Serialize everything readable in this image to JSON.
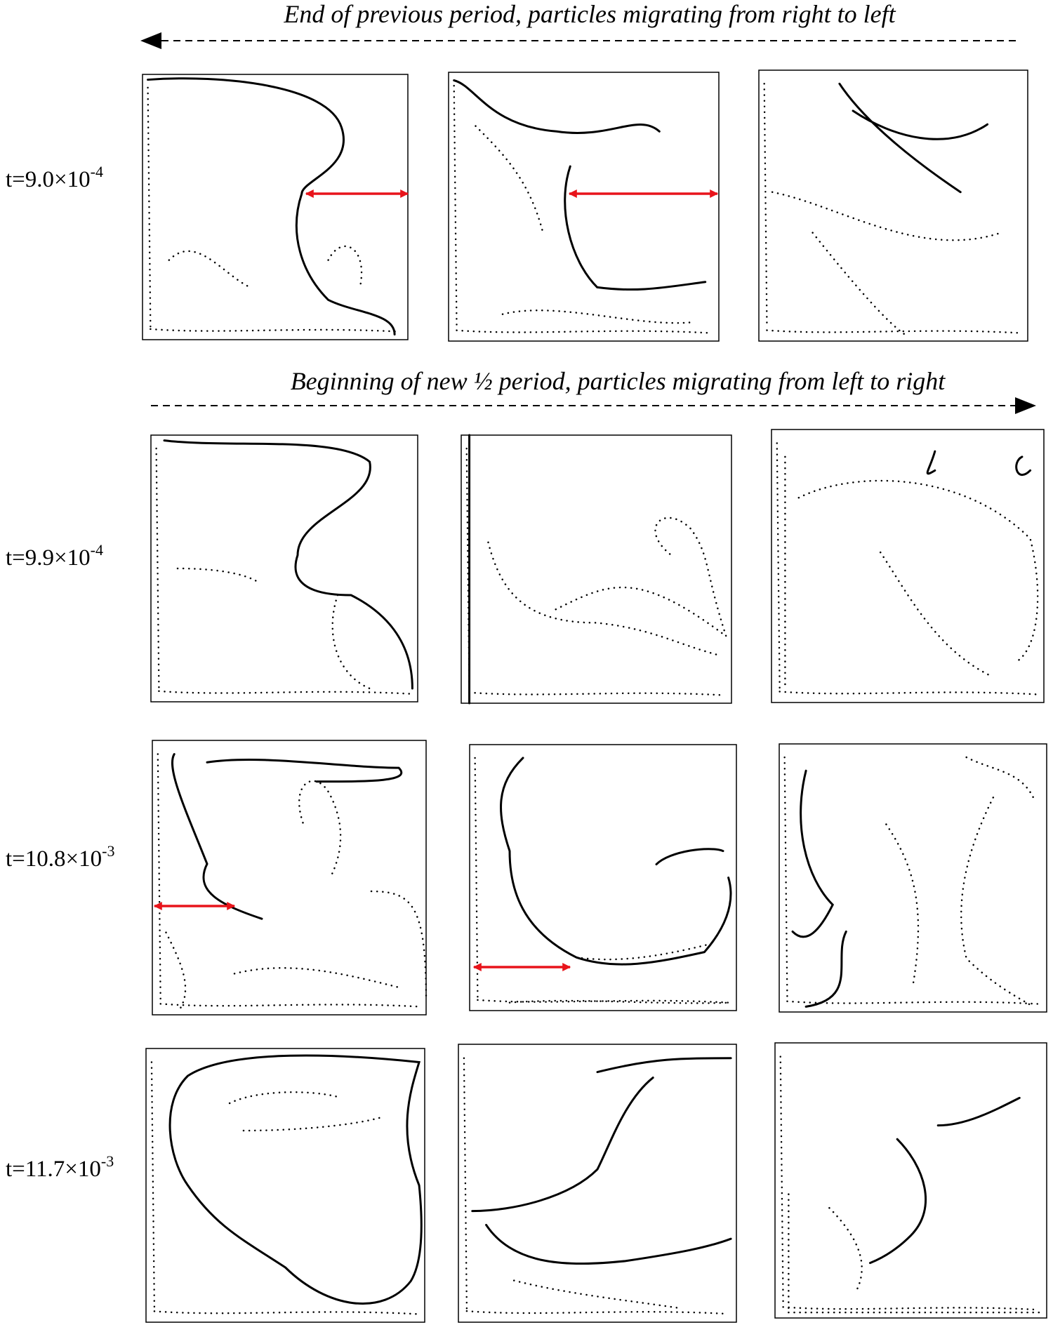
{
  "captions": [
    "End of previous period, particles migrating from right to left",
    "Beginning of new ½ period, particles migrating from left to right"
  ],
  "rows": [
    {
      "label": {
        "base": "t=9.0×10",
        "exp": "-4"
      }
    },
    {
      "label": {
        "base": "t=9.9×10",
        "exp": "-4"
      }
    },
    {
      "label": {
        "base": "t=10.8×10",
        "exp": "-3"
      }
    },
    {
      "label": {
        "base": "t=11.7×10",
        "exp": "-3"
      }
    }
  ]
}
